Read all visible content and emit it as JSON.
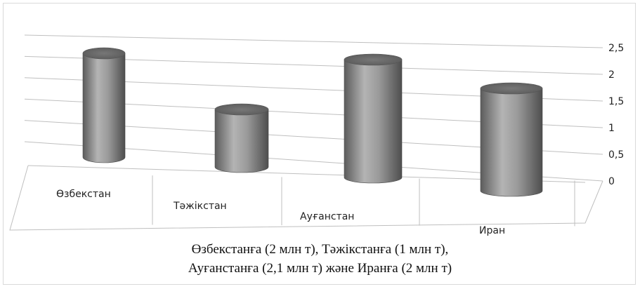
{
  "chart_data": {
    "type": "bar",
    "style": "3d-cylinder",
    "categories": [
      "Өзбекстан",
      "Тәжікстан",
      "Ауғанстан",
      "Иран"
    ],
    "values": [
      2,
      1,
      2.1,
      2
    ],
    "ylim": [
      0,
      2.5
    ],
    "yticks": [
      "0",
      "0,5",
      "1",
      "1,5",
      "2",
      "2,5"
    ],
    "title": "",
    "xlabel": "",
    "ylabel": "",
    "grid": true,
    "colors": {
      "bar": "#8a8a8a",
      "grid": "#bfbfbf"
    }
  },
  "caption": {
    "line1": "Өзбекстанға (2 млн т), Тәжікстанға (1 млн т),",
    "line2": "Ауғанстанға (2,1 млн т) және Иранға (2 млн т)"
  }
}
